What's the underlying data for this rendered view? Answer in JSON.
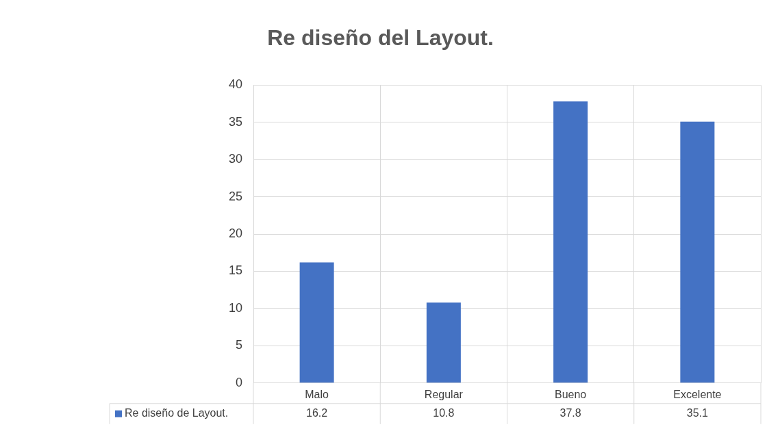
{
  "chart_data": {
    "type": "bar",
    "title": "Re diseño del Layout.",
    "categories": [
      "Malo",
      "Regular",
      "Bueno",
      "Excelente"
    ],
    "series": [
      {
        "name": "Re diseño de Layout.",
        "color": "#4472c4",
        "values": [
          16.2,
          10.8,
          37.8,
          35.1
        ]
      }
    ],
    "ylim": [
      0,
      40
    ],
    "yticks": [
      0,
      5,
      10,
      15,
      20,
      25,
      30,
      35,
      40
    ],
    "grid": true,
    "legend": "bottom",
    "data_labels": true
  }
}
